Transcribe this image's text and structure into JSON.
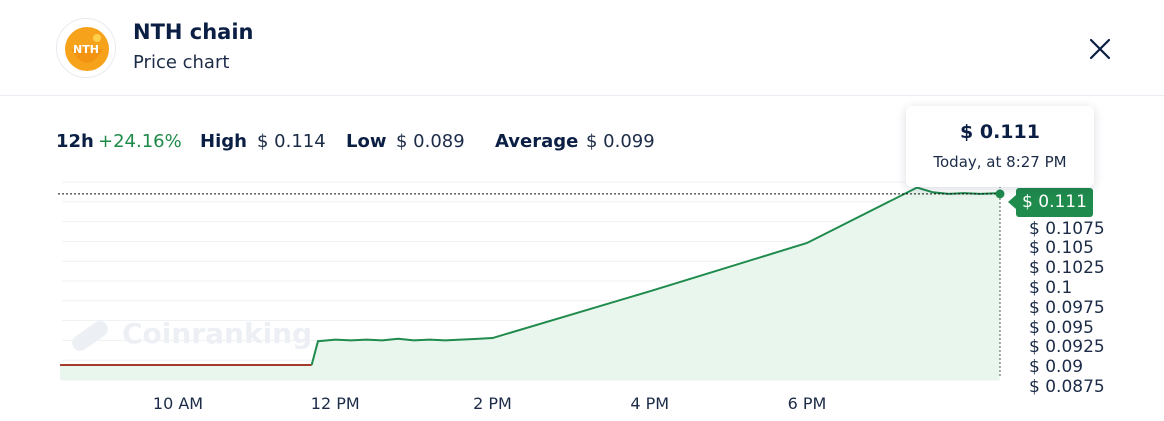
{
  "header": {
    "coin_name": "NTH chain",
    "subtitle": "Price chart",
    "logo_text": "NTH"
  },
  "stats": {
    "period": "12h",
    "change": "+24.16%",
    "high_label": "High",
    "high_value": "$ 0.114",
    "low_label": "Low",
    "low_value": "$ 0.089",
    "average_label": "Average",
    "average_value": "$ 0.099"
  },
  "tooltip": {
    "price": "$ 0.111",
    "time": "Today, at 8:27 PM"
  },
  "current_price_badge": "$ 0.111",
  "watermark": "Coinranking",
  "colors": {
    "up": "#1f8b4c",
    "down": "#a33a2a",
    "fill": "#e9f6ee",
    "text": "#0b1f44"
  },
  "chart_data": {
    "type": "area",
    "x_tick_labels": [
      "10 AM",
      "12 PM",
      "2 PM",
      "4 PM",
      "6 PM"
    ],
    "y_tick_labels": [
      "$ 0.1075",
      "$ 0.105",
      "$ 0.1025",
      "$ 0.1",
      "$ 0.0975",
      "$ 0.095",
      "$ 0.0925",
      "$ 0.09",
      "$ 0.0875"
    ],
    "ylim": [
      0.0875,
      0.1125
    ],
    "x": [
      8.5,
      8.75,
      9.0,
      9.5,
      10.0,
      10.5,
      11.0,
      11.5,
      11.7,
      11.78,
      11.9,
      12.0,
      12.2,
      12.4,
      12.6,
      12.8,
      13.0,
      13.2,
      13.4,
      13.6,
      13.8,
      14.0,
      16.0,
      18.0,
      19.4,
      19.6,
      19.8,
      20.0,
      20.2,
      20.45
    ],
    "values": [
      0.0894,
      0.0894,
      0.0894,
      0.0894,
      0.0894,
      0.0894,
      0.0894,
      0.0894,
      0.0894,
      0.0924,
      0.0925,
      0.0926,
      0.0925,
      0.0926,
      0.0925,
      0.0927,
      0.0925,
      0.0926,
      0.0925,
      0.0926,
      0.0927,
      0.0928,
      0.0987,
      0.1048,
      0.1118,
      0.1112,
      0.111,
      0.1111,
      0.111,
      0.1111
    ],
    "current_value": 0.111,
    "grid": true
  }
}
